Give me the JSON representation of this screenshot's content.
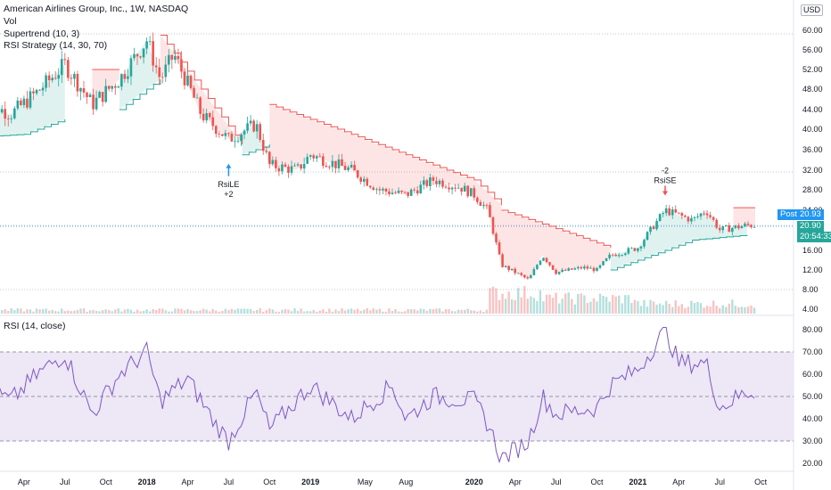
{
  "legend": {
    "title": "American Airlines Group, Inc., 1W, NASDAQ",
    "vol": "Vol",
    "supertrend": "Supertrend (10, 3)",
    "strategy": "RSI Strategy (14, 30, 70)",
    "rsi": "RSI (14, close)"
  },
  "currency": "USD",
  "price_labels": {
    "post_label": "Post",
    "post_value": "20.93",
    "last_value": "20.90",
    "countdown": "20:54:33"
  },
  "colors": {
    "up": "#26a69a",
    "down": "#ef5350",
    "rsi_line": "#7e57c2",
    "rsi_band": "#ede7f6",
    "supertrend_up": "#26a69a",
    "supertrend_down": "#ef5350",
    "post_box": "#2196f3",
    "last_box": "#26a69a"
  },
  "chart_data": [
    {
      "type": "candlestick",
      "title": "American Airlines Group, Inc., 1W, NASDAQ",
      "x_tick_labels": [
        "Apr",
        "Jul",
        "Oct",
        "2018",
        "Apr",
        "Jul",
        "Oct",
        "2019",
        "May",
        "Aug",
        "2020",
        "Apr",
        "Jul",
        "Oct",
        "2021",
        "Apr",
        "Jul",
        "Oct"
      ],
      "y_scale": "log",
      "y_ticks": [
        4.0,
        8.0,
        12.0,
        16.0,
        20.0,
        24.0,
        28.0,
        32.0,
        36.0,
        40.0,
        44.0,
        48.0,
        52.0,
        56.0,
        60.0
      ],
      "close_anchors": [
        {
          "date": "2017-01",
          "close": 46.0
        },
        {
          "date": "2017-03",
          "close": 43.0
        },
        {
          "date": "2017-05",
          "close": 47.5
        },
        {
          "date": "2017-07",
          "close": 53.0
        },
        {
          "date": "2017-09",
          "close": 45.0
        },
        {
          "date": "2017-11",
          "close": 50.0
        },
        {
          "date": "2018-01",
          "close": 58.0
        },
        {
          "date": "2018-02",
          "close": 50.0
        },
        {
          "date": "2018-03",
          "close": 55.0
        },
        {
          "date": "2018-05",
          "close": 43.0
        },
        {
          "date": "2018-07",
          "close": 38.0
        },
        {
          "date": "2018-09",
          "close": 41.0
        },
        {
          "date": "2018-10",
          "close": 33.0
        },
        {
          "date": "2018-12",
          "close": 32.0
        },
        {
          "date": "2019-01",
          "close": 35.0
        },
        {
          "date": "2019-04",
          "close": 32.0
        },
        {
          "date": "2019-06",
          "close": 28.0
        },
        {
          "date": "2019-08",
          "close": 27.0
        },
        {
          "date": "2019-10",
          "close": 30.0
        },
        {
          "date": "2019-12",
          "close": 28.5
        },
        {
          "date": "2020-01",
          "close": 27.0
        },
        {
          "date": "2020-02",
          "close": 24.0
        },
        {
          "date": "2020-03",
          "close": 13.0
        },
        {
          "date": "2020-05",
          "close": 10.0
        },
        {
          "date": "2020-06",
          "close": 15.0
        },
        {
          "date": "2020-07",
          "close": 11.5
        },
        {
          "date": "2020-09",
          "close": 12.5
        },
        {
          "date": "2020-10",
          "close": 12.0
        },
        {
          "date": "2020-11",
          "close": 15.0
        },
        {
          "date": "2021-01",
          "close": 16.5
        },
        {
          "date": "2021-03",
          "close": 24.0
        },
        {
          "date": "2021-05",
          "close": 22.0
        },
        {
          "date": "2021-06",
          "close": 24.0
        },
        {
          "date": "2021-07",
          "close": 20.0
        },
        {
          "date": "2021-09",
          "close": 20.93
        }
      ],
      "signals": [
        {
          "label": "RsiLE",
          "qty": "+2",
          "date": "2018-07",
          "price": 35.0,
          "direction": "long"
        },
        {
          "label": "RsiSE",
          "qty": "-2",
          "date": "2021-03",
          "price": 26.0,
          "direction": "short"
        }
      ]
    },
    {
      "type": "line",
      "title": "RSI (14, close)",
      "y_ticks": [
        20.0,
        30.0,
        40.0,
        50.0,
        60.0,
        70.0,
        80.0
      ],
      "bands": [
        30,
        50,
        70
      ],
      "rsi_anchors": [
        {
          "date": "2017-01",
          "value": 55
        },
        {
          "date": "2017-03",
          "value": 48
        },
        {
          "date": "2017-05",
          "value": 60
        },
        {
          "date": "2017-07",
          "value": 69
        },
        {
          "date": "2017-09",
          "value": 42
        },
        {
          "date": "2017-11",
          "value": 60
        },
        {
          "date": "2018-01",
          "value": 70
        },
        {
          "date": "2018-02",
          "value": 48
        },
        {
          "date": "2018-04",
          "value": 58
        },
        {
          "date": "2018-06",
          "value": 38
        },
        {
          "date": "2018-07",
          "value": 30
        },
        {
          "date": "2018-09",
          "value": 52
        },
        {
          "date": "2018-10",
          "value": 35
        },
        {
          "date": "2019-01",
          "value": 55
        },
        {
          "date": "2019-04",
          "value": 40
        },
        {
          "date": "2019-07",
          "value": 55
        },
        {
          "date": "2019-08",
          "value": 40
        },
        {
          "date": "2019-10",
          "value": 50
        },
        {
          "date": "2020-01",
          "value": 48
        },
        {
          "date": "2020-02",
          "value": 38
        },
        {
          "date": "2020-03",
          "value": 22
        },
        {
          "date": "2020-05",
          "value": 30
        },
        {
          "date": "2020-06",
          "value": 50
        },
        {
          "date": "2020-07",
          "value": 42
        },
        {
          "date": "2020-10",
          "value": 45
        },
        {
          "date": "2020-11",
          "value": 55
        },
        {
          "date": "2021-01",
          "value": 62
        },
        {
          "date": "2021-03",
          "value": 80
        },
        {
          "date": "2021-04",
          "value": 65
        },
        {
          "date": "2021-06",
          "value": 65
        },
        {
          "date": "2021-07",
          "value": 45
        },
        {
          "date": "2021-09",
          "value": 52
        }
      ]
    }
  ]
}
